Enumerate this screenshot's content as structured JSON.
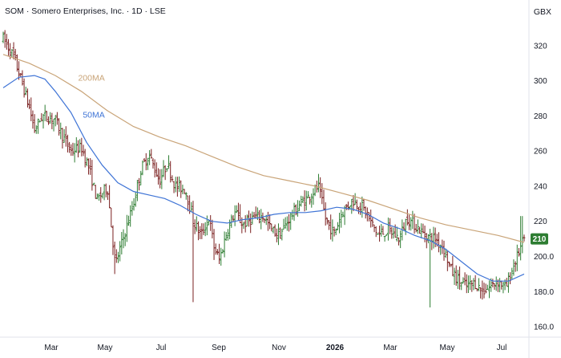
{
  "header": {
    "title": "SOM · Somero Enterprises, Inc. · 1D · LSE",
    "currency": "GBX"
  },
  "chart_data": {
    "type": "line",
    "series_kind": "ohlc",
    "ylim": [
      155,
      330
    ],
    "y_ticks": [
      160,
      180,
      200,
      220,
      240,
      260,
      280,
      300,
      320
    ],
    "y_tick_labels": [
      "160.0",
      "180.0",
      "200.0",
      "220",
      "240",
      "260",
      "280",
      "300",
      "320"
    ],
    "x_ticks": [
      {
        "label": "Mar",
        "year": false
      },
      {
        "label": "May",
        "year": false
      },
      {
        "label": "Jul",
        "year": false
      },
      {
        "label": "Sep",
        "year": false
      },
      {
        "label": "Nov",
        "year": false
      },
      {
        "label": "2026",
        "year": true
      },
      {
        "label": "Mar",
        "year": false
      },
      {
        "label": "May",
        "year": false
      },
      {
        "label": "Jul",
        "year": false
      }
    ],
    "last_price": "210",
    "up_color": "#2e7d32",
    "down_color": "#7a1f1f",
    "price_path": [
      [
        0,
        324
      ],
      [
        0.02,
        314
      ],
      [
        0.035,
        300
      ],
      [
        0.05,
        285
      ],
      [
        0.06,
        272
      ],
      [
        0.075,
        280
      ],
      [
        0.1,
        278
      ],
      [
        0.115,
        268
      ],
      [
        0.13,
        260
      ],
      [
        0.15,
        262
      ],
      [
        0.165,
        250
      ],
      [
        0.18,
        232
      ],
      [
        0.2,
        240
      ],
      [
        0.215,
        195
      ],
      [
        0.23,
        210
      ],
      [
        0.25,
        230
      ],
      [
        0.265,
        250
      ],
      [
        0.28,
        258
      ],
      [
        0.3,
        243
      ],
      [
        0.315,
        253
      ],
      [
        0.33,
        240
      ],
      [
        0.35,
        238
      ],
      [
        0.365,
        220
      ],
      [
        0.38,
        212
      ],
      [
        0.395,
        222
      ],
      [
        0.405,
        205
      ],
      [
        0.415,
        198
      ],
      [
        0.43,
        215
      ],
      [
        0.445,
        225
      ],
      [
        0.46,
        218
      ],
      [
        0.48,
        222
      ],
      [
        0.5,
        223
      ],
      [
        0.515,
        215
      ],
      [
        0.53,
        212
      ],
      [
        0.55,
        222
      ],
      [
        0.57,
        230
      ],
      [
        0.59,
        235
      ],
      [
        0.605,
        240
      ],
      [
        0.62,
        220
      ],
      [
        0.635,
        213
      ],
      [
        0.65,
        225
      ],
      [
        0.67,
        232
      ],
      [
        0.69,
        228
      ],
      [
        0.705,
        220
      ],
      [
        0.72,
        212
      ],
      [
        0.74,
        215
      ],
      [
        0.76,
        210
      ],
      [
        0.775,
        222
      ],
      [
        0.79,
        218
      ],
      [
        0.81,
        212
      ],
      [
        0.83,
        210
      ],
      [
        0.845,
        205
      ],
      [
        0.86,
        192
      ],
      [
        0.875,
        186
      ],
      [
        0.89,
        183
      ],
      [
        0.905,
        185
      ],
      [
        0.92,
        180
      ],
      [
        0.935,
        183
      ],
      [
        0.95,
        186
      ],
      [
        0.965,
        182
      ],
      [
        0.98,
        195
      ],
      [
        1,
        210
      ]
    ],
    "ma_series": [
      {
        "name": "200MA",
        "color": "#c9a478",
        "label_at": [
          0.195,
          300
        ],
        "values": [
          [
            0,
            315
          ],
          [
            0.05,
            310
          ],
          [
            0.1,
            303
          ],
          [
            0.15,
            294
          ],
          [
            0.2,
            283
          ],
          [
            0.25,
            274
          ],
          [
            0.3,
            268
          ],
          [
            0.35,
            263
          ],
          [
            0.4,
            257
          ],
          [
            0.45,
            251
          ],
          [
            0.5,
            246
          ],
          [
            0.55,
            243
          ],
          [
            0.6,
            240
          ],
          [
            0.65,
            236
          ],
          [
            0.7,
            232
          ],
          [
            0.75,
            227
          ],
          [
            0.8,
            222
          ],
          [
            0.85,
            218
          ],
          [
            0.9,
            215
          ],
          [
            0.95,
            212
          ],
          [
            1,
            208
          ]
        ]
      },
      {
        "name": "50MA",
        "color": "#3f74d6",
        "label_at": [
          0.195,
          279
        ],
        "values": [
          [
            0,
            296
          ],
          [
            0.03,
            302
          ],
          [
            0.06,
            303
          ],
          [
            0.08,
            301
          ],
          [
            0.1,
            294
          ],
          [
            0.13,
            282
          ],
          [
            0.16,
            265
          ],
          [
            0.19,
            252
          ],
          [
            0.22,
            242
          ],
          [
            0.25,
            237
          ],
          [
            0.28,
            235
          ],
          [
            0.31,
            233
          ],
          [
            0.34,
            229
          ],
          [
            0.37,
            224
          ],
          [
            0.4,
            220
          ],
          [
            0.43,
            219
          ],
          [
            0.46,
            221
          ],
          [
            0.49,
            222
          ],
          [
            0.52,
            224
          ],
          [
            0.55,
            225
          ],
          [
            0.58,
            225
          ],
          [
            0.61,
            226
          ],
          [
            0.64,
            228
          ],
          [
            0.67,
            227
          ],
          [
            0.7,
            224
          ],
          [
            0.73,
            219
          ],
          [
            0.76,
            216
          ],
          [
            0.79,
            212
          ],
          [
            0.82,
            209
          ],
          [
            0.85,
            204
          ],
          [
            0.88,
            197
          ],
          [
            0.91,
            190
          ],
          [
            0.94,
            186
          ],
          [
            0.97,
            186
          ],
          [
            1,
            190
          ]
        ]
      }
    ]
  }
}
